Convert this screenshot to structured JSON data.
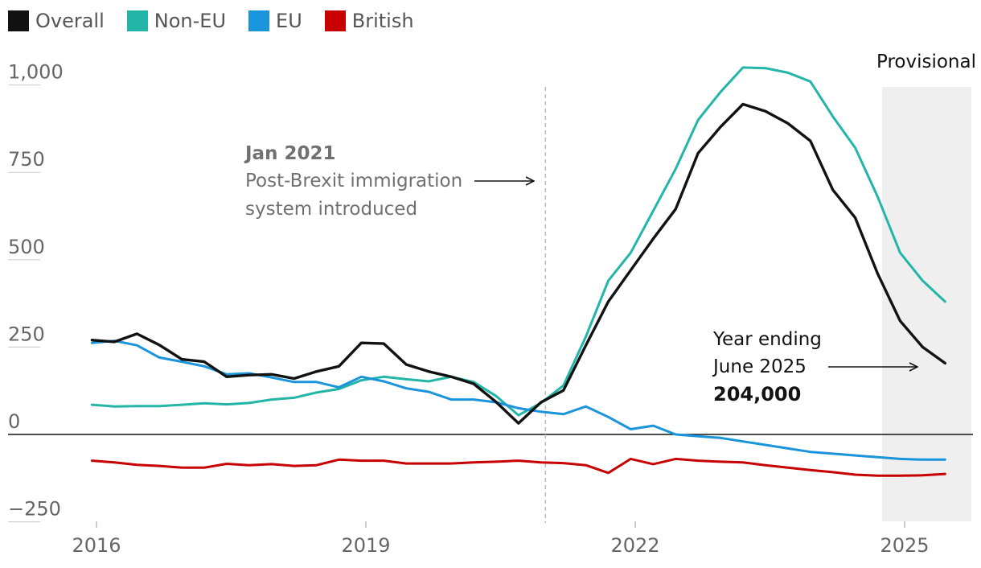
{
  "legend": [
    {
      "name": "Overall",
      "color": "#121212"
    },
    {
      "name": "Non-EU",
      "color": "#22b5a8"
    },
    {
      "name": "EU",
      "color": "#1a94db"
    },
    {
      "name": "British",
      "color": "#c70000"
    }
  ],
  "annotations": {
    "brexit_date": "Jan 2021",
    "brexit_line1": "Post-Brexit immigration",
    "brexit_line2": "system introduced",
    "latest_line1": "Year ending",
    "latest_line2": "June 2025",
    "latest_value": "204,000",
    "provisional": "Provisional"
  },
  "chart_data": {
    "type": "line",
    "x_start": 2015.95,
    "x_step": 0.25,
    "xlim": [
      2015.4,
      2026.0
    ],
    "ylim": [
      -300,
      1050
    ],
    "yticks": [
      -250,
      0,
      250,
      500,
      750,
      1000
    ],
    "ytick_labels": [
      "−250",
      "0",
      "250",
      "500",
      "750",
      "1,000"
    ],
    "xticks": [
      2016,
      2019,
      2022,
      2025
    ],
    "xtick_labels": [
      "2016",
      "2019",
      "2022",
      "2025"
    ],
    "brexit_x": 2021.0,
    "provisional_range": [
      2024.75,
      2025.75
    ],
    "series": [
      {
        "name": "Non-EU",
        "color": "#22b5a8",
        "values": [
          85,
          80,
          81,
          81,
          85,
          89,
          86,
          90,
          100,
          105,
          120,
          130,
          155,
          165,
          158,
          152,
          165,
          150,
          110,
          55,
          90,
          140,
          280,
          440,
          520,
          640,
          760,
          900,
          980,
          1050,
          1048,
          1035,
          1010,
          910,
          820,
          680,
          520,
          440,
          380
        ]
      },
      {
        "name": "EU",
        "color": "#1a94db",
        "values": [
          262,
          268,
          255,
          220,
          208,
          195,
          172,
          175,
          163,
          150,
          150,
          135,
          165,
          152,
          132,
          122,
          100,
          100,
          92,
          75,
          65,
          58,
          80,
          50,
          15,
          25,
          0,
          -5,
          -10,
          -20,
          -30,
          -40,
          -50,
          -55,
          -60,
          -65,
          -70,
          -72,
          -72
        ]
      },
      {
        "name": "British",
        "color": "#c70000",
        "values": [
          -75,
          -80,
          -87,
          -90,
          -95,
          -95,
          -84,
          -88,
          -85,
          -90,
          -88,
          -72,
          -75,
          -75,
          -83,
          -83,
          -83,
          -80,
          -78,
          -75,
          -80,
          -82,
          -88,
          -110,
          -70,
          -85,
          -70,
          -75,
          -78,
          -80,
          -88,
          -95,
          -102,
          -108,
          -115,
          -118,
          -118,
          -117,
          -113
        ]
      },
      {
        "name": "Overall",
        "color": "#121212",
        "values": [
          270,
          265,
          288,
          256,
          215,
          208,
          165,
          170,
          172,
          160,
          180,
          195,
          262,
          260,
          200,
          180,
          165,
          145,
          93,
          32,
          92,
          126,
          255,
          380,
          470,
          560,
          645,
          805,
          880,
          945,
          925,
          890,
          840,
          700,
          620,
          460,
          325,
          250,
          204
        ]
      }
    ]
  }
}
